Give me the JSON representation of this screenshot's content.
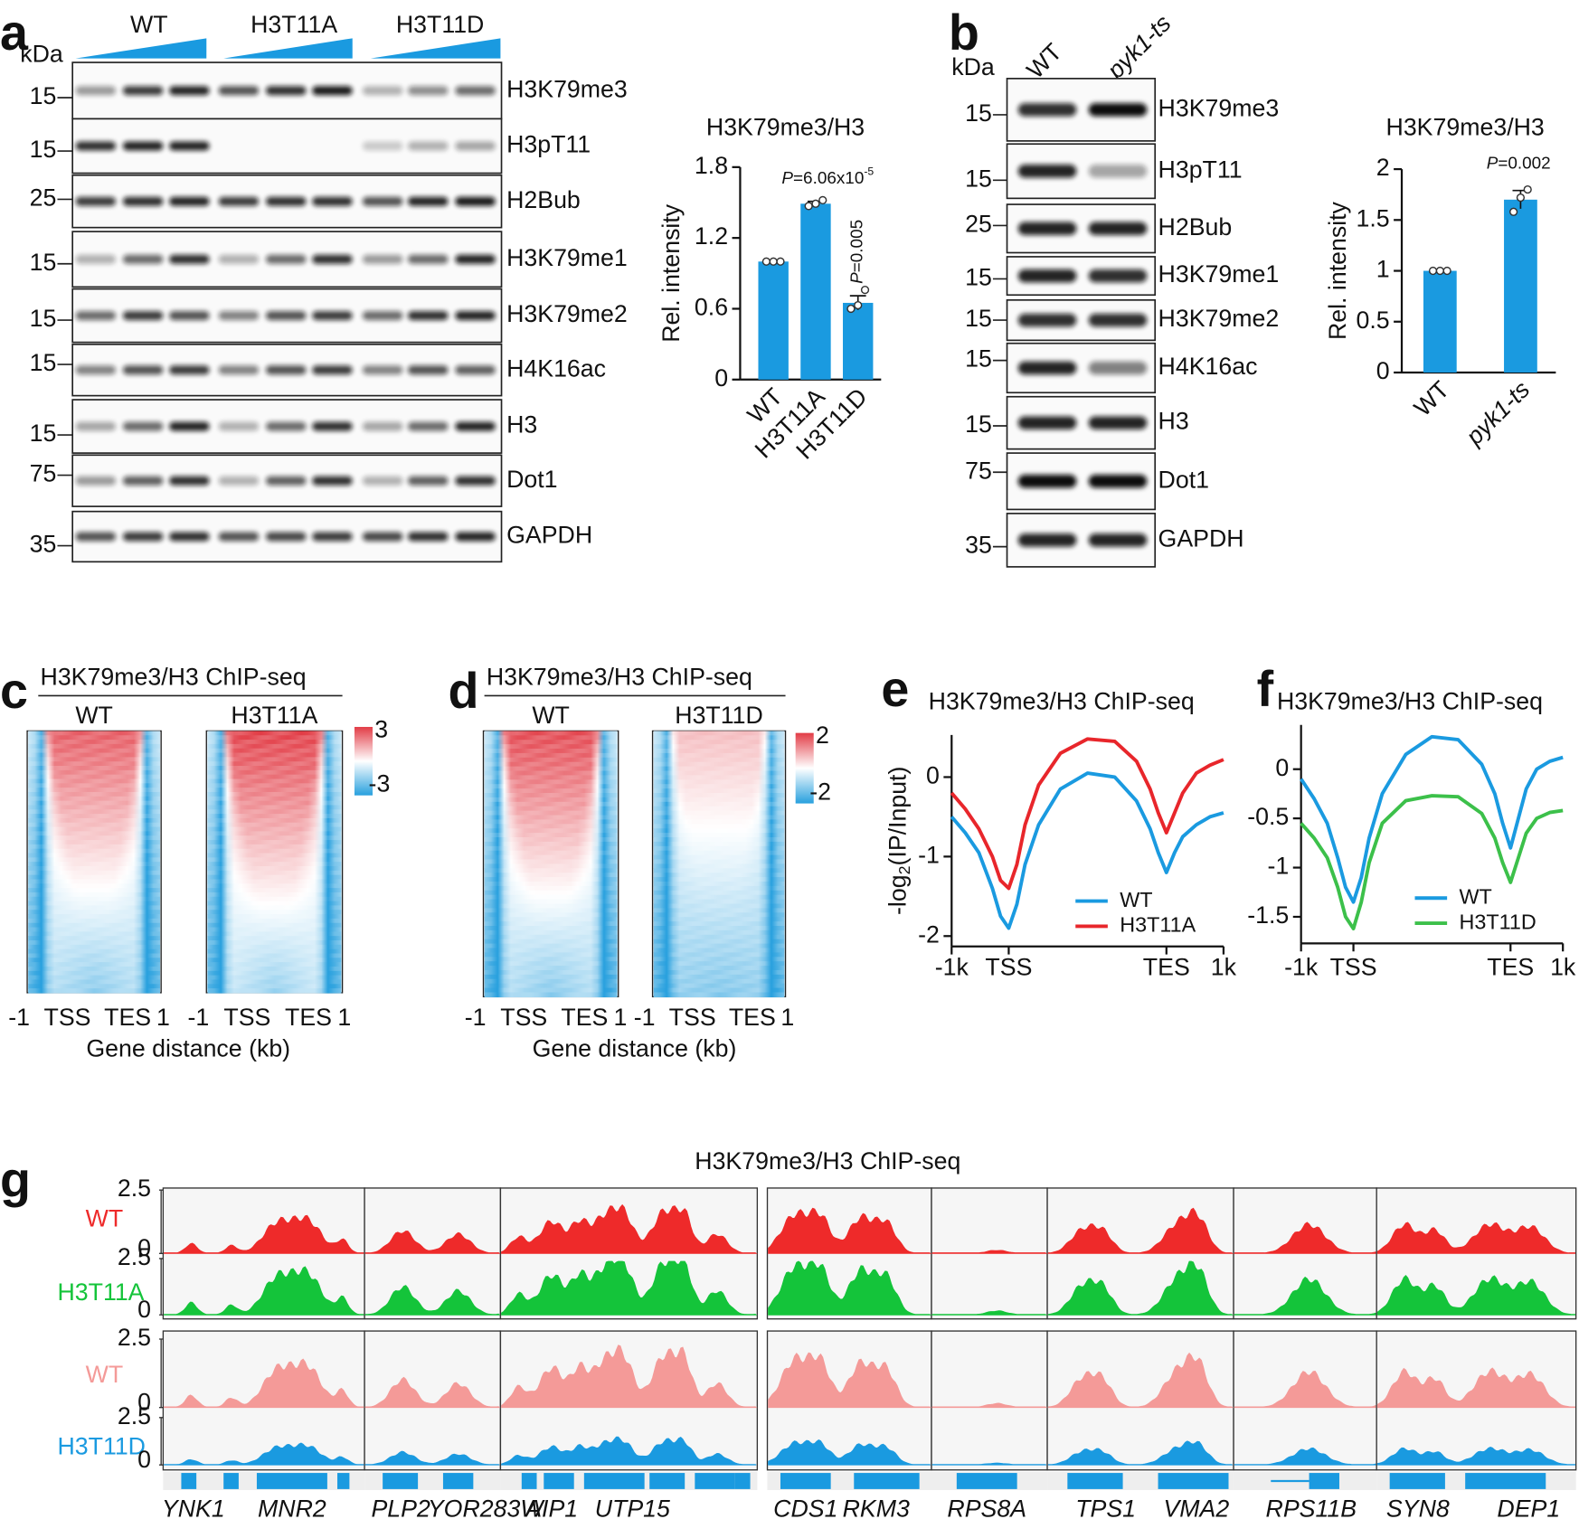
{
  "panel_labels": [
    "a",
    "b",
    "c",
    "d",
    "e",
    "f",
    "g"
  ],
  "blot_a": {
    "kda": "kDa",
    "groups": [
      "WT",
      "H3T11A",
      "H3T11D"
    ],
    "rows": [
      {
        "marker": 15,
        "name": "H3K79me3"
      },
      {
        "marker": 15,
        "name": "H3pT11"
      },
      {
        "marker": 25,
        "name": "H2Bub"
      },
      {
        "marker": 15,
        "name": "H3K79me1"
      },
      {
        "marker": 15,
        "name": "H3K79me2"
      },
      {
        "marker": 15,
        "name": "H4K16ac"
      },
      {
        "marker": 15,
        "name": "H3"
      },
      {
        "marker": 75,
        "name": "Dot1"
      },
      {
        "marker": 35,
        "name": "GAPDH"
      }
    ]
  },
  "blot_b": {
    "kda": "kDa",
    "lanes": [
      "WT",
      "pyk1-ts"
    ],
    "rows": [
      {
        "marker": 15,
        "name": "H3K79me3"
      },
      {
        "marker": 15,
        "name": "H3pT11"
      },
      {
        "marker": 25,
        "name": "H2Bub"
      },
      {
        "marker": 15,
        "name": "H3K79me1"
      },
      {
        "marker": 15,
        "name": "H3K79me2"
      },
      {
        "marker": 15,
        "name": "H4K16ac"
      },
      {
        "marker": 15,
        "name": "H3"
      },
      {
        "marker": 75,
        "name": "Dot1"
      },
      {
        "marker": 35,
        "name": "GAPDH"
      }
    ]
  },
  "heatmap_c": {
    "title": "H3K79me3/H3 ChIP-seq",
    "panels": [
      "WT",
      "H3T11A"
    ],
    "scale": [
      3,
      -3
    ],
    "xticks": [
      "-1",
      "TSS",
      "TES",
      "1"
    ],
    "xlabel": "Gene distance (kb)"
  },
  "heatmap_d": {
    "title": "H3K79me3/H3 ChIP-seq",
    "panels": [
      "WT",
      "H3T11D"
    ],
    "scale": [
      2,
      -2
    ],
    "xticks": [
      "-1",
      "TSS",
      "TES",
      "1"
    ],
    "xlabel": "Gene distance (kb)"
  },
  "tracks": {
    "title": "H3K79me3/H3 ChIP-seq",
    "yticks": [
      2.5,
      0
    ],
    "tracks": [
      {
        "name": "WT",
        "color": "#ee2a2a"
      },
      {
        "name": "H3T11A",
        "color": "#14c43a"
      },
      {
        "name": "WT",
        "color": "#f49a98"
      },
      {
        "name": "H3T11D",
        "color": "#1a9ae0"
      }
    ],
    "genes": [
      "YNK1",
      "MNR2",
      "PLP2",
      "YOR283W",
      "AIP1",
      "UTP15",
      "CDS1",
      "RKM3",
      "RPS8A",
      "TPS1",
      "VMA2",
      "RPS11B",
      "SYN8",
      "DEP1"
    ]
  },
  "chart_data": [
    {
      "type": "bar",
      "title": "H3K79me3/H3",
      "ylabel": "Rel. intensity",
      "categories": [
        "WT",
        "H3T11A",
        "H3T11D"
      ],
      "values": [
        1.0,
        1.49,
        0.65
      ],
      "errors": [
        0.0,
        0.02,
        0.06
      ],
      "points": [
        [
          1,
          1,
          1
        ],
        [
          1.47,
          1.49,
          1.52
        ],
        [
          0.6,
          0.63,
          0.76
        ]
      ],
      "color": "#1a9ae0",
      "ylim": [
        0,
        1.8
      ],
      "yticks": [
        0,
        0.6,
        1.2,
        1.8
      ],
      "annotations": [
        {
          "italic": "P",
          "text": "=6.06x10",
          "sup": "-5"
        },
        {
          "italic": "P",
          "text": "=0.005"
        }
      ]
    },
    {
      "type": "bar",
      "title": "H3K79me3/H3",
      "ylabel": "Rel. intensity",
      "categories": [
        "WT",
        "pyk1-ts"
      ],
      "values": [
        1.0,
        1.7
      ],
      "errors": [
        0.0,
        0.09
      ],
      "points": [
        [
          1,
          1,
          1
        ],
        [
          1.58,
          1.72,
          1.8
        ]
      ],
      "color": "#1a9ae0",
      "ylim": [
        0,
        2
      ],
      "yticks": [
        0,
        0.5,
        1,
        1.5,
        2
      ],
      "annotations": [
        {
          "italic": "P",
          "text": "=0.002"
        }
      ]
    },
    {
      "type": "line",
      "title": "H3K79me3/H3 ChIP-seq",
      "ylabel": {
        "text": "-log",
        "sub": "2",
        "rest": "(IP/Input)"
      },
      "x": [
        0,
        5,
        10,
        15,
        18,
        21,
        24,
        27,
        32,
        40,
        50,
        60,
        68,
        73,
        76,
        79,
        82,
        85,
        90,
        95,
        100
      ],
      "xlim": [
        0,
        100
      ],
      "xticks": [
        {
          "value": 0,
          "label": "-1k"
        },
        {
          "value": 21,
          "label": "TSS"
        },
        {
          "value": 79,
          "label": "TES"
        },
        {
          "value": 100,
          "label": "1k"
        }
      ],
      "ylim": [
        -2.13,
        0.53
      ],
      "yticks": [
        -2,
        -1,
        0
      ],
      "legend": "lower right",
      "series": [
        {
          "name": "WT",
          "color": "#1a9ae0",
          "values": [
            -0.5,
            -0.7,
            -0.95,
            -1.4,
            -1.75,
            -1.9,
            -1.6,
            -1.1,
            -0.6,
            -0.15,
            0.05,
            0,
            -0.3,
            -0.65,
            -0.95,
            -1.2,
            -0.95,
            -0.75,
            -0.6,
            -0.5,
            -0.45
          ]
        },
        {
          "name": "H3T11A",
          "color": "#e8262b",
          "values": [
            -0.2,
            -0.4,
            -0.65,
            -1.0,
            -1.3,
            -1.4,
            -1.1,
            -0.6,
            -0.1,
            0.3,
            0.48,
            0.45,
            0.2,
            -0.15,
            -0.45,
            -0.7,
            -0.45,
            -0.2,
            0.05,
            0.15,
            0.22
          ]
        }
      ]
    },
    {
      "type": "line",
      "title": "H3K79me3/H3 ChIP-seq",
      "x": [
        0,
        5,
        10,
        14,
        17,
        20,
        23,
        26,
        31,
        40,
        50,
        60,
        69,
        74,
        77,
        80,
        83,
        86,
        90,
        95,
        100
      ],
      "xlim": [
        0,
        100
      ],
      "xticks": [
        {
          "value": 0,
          "label": "-1k"
        },
        {
          "value": 20,
          "label": "TSS"
        },
        {
          "value": 80,
          "label": "TES"
        },
        {
          "value": 100,
          "label": "1k"
        }
      ],
      "ylim": [
        -1.77,
        0.45
      ],
      "yticks": [
        -1.5,
        -1,
        -0.5,
        0
      ],
      "legend": "lower right",
      "series": [
        {
          "name": "WT",
          "color": "#1a9ae0",
          "values": [
            -0.1,
            -0.3,
            -0.55,
            -0.9,
            -1.2,
            -1.35,
            -1.1,
            -0.7,
            -0.25,
            0.15,
            0.33,
            0.3,
            0.05,
            -0.25,
            -0.55,
            -0.8,
            -0.5,
            -0.2,
            0,
            0.08,
            0.12
          ]
        },
        {
          "name": "H3T11D",
          "color": "#3cc04a",
          "values": [
            -0.55,
            -0.7,
            -0.9,
            -1.2,
            -1.5,
            -1.62,
            -1.35,
            -0.95,
            -0.55,
            -0.32,
            -0.27,
            -0.28,
            -0.45,
            -0.7,
            -0.95,
            -1.15,
            -0.9,
            -0.65,
            -0.5,
            -0.44,
            -0.42
          ]
        }
      ]
    }
  ]
}
